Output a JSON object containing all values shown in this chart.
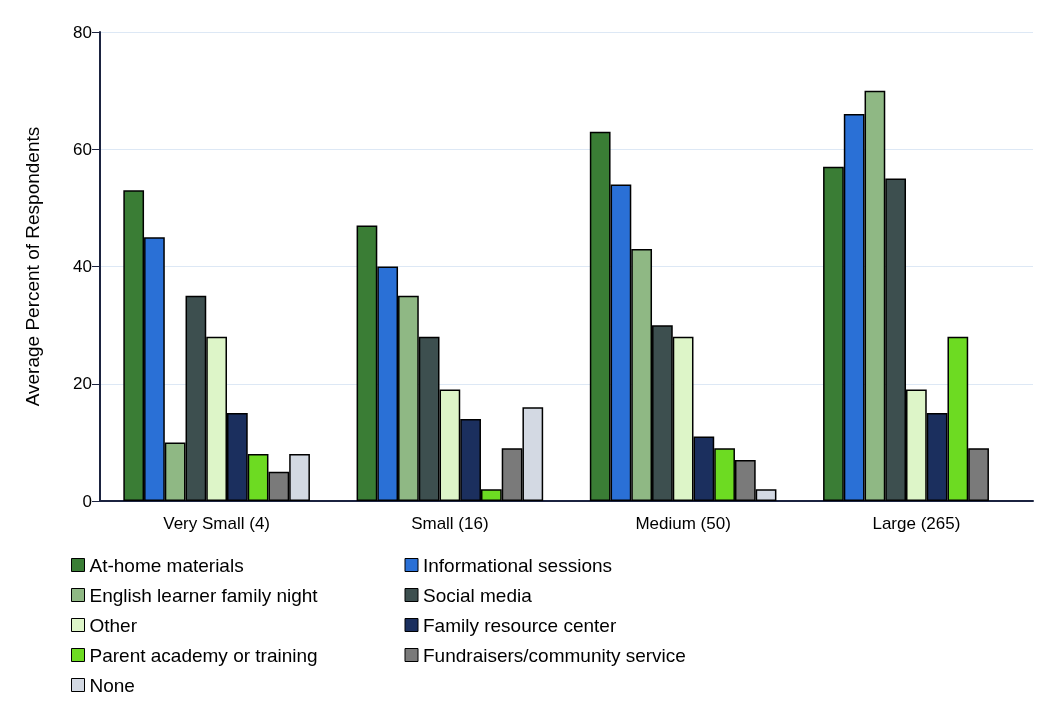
{
  "chart_data": {
    "type": "bar",
    "ylabel": "Average Percent of Respondents",
    "categories": [
      "Very Small (4)",
      "Small (16)",
      "Medium (50)",
      "Large (265)"
    ],
    "series": [
      {
        "name": "At-home materials",
        "color": "#3a7d35",
        "values": [
          53,
          47,
          63,
          57
        ]
      },
      {
        "name": "Informational sessions",
        "color": "#2a70d6",
        "values": [
          45,
          40,
          54,
          66
        ]
      },
      {
        "name": "English learner family night",
        "color": "#8fb884",
        "values": [
          10,
          35,
          43,
          70
        ]
      },
      {
        "name": "Social media",
        "color": "#3d4f4f",
        "values": [
          35,
          28,
          30,
          55
        ]
      },
      {
        "name": "Other",
        "color": "#ddf5c8",
        "values": [
          28,
          19,
          28,
          19
        ]
      },
      {
        "name": "Family resource center",
        "color": "#1b2f5e",
        "values": [
          15,
          14,
          11,
          15
        ]
      },
      {
        "name": "Parent academy or training",
        "color": "#6ddb22",
        "values": [
          8,
          2,
          9,
          28
        ]
      },
      {
        "name": "Fundraisers/community service",
        "color": "#7a7a7a",
        "values": [
          5,
          9,
          7,
          9
        ]
      },
      {
        "name": "None",
        "color": "#d3d9e3",
        "values": [
          8,
          16,
          2,
          null
        ]
      }
    ],
    "ylim": [
      0,
      80
    ],
    "yticks": [
      0,
      20,
      40,
      60,
      80
    ],
    "grid": "y",
    "legend": "bottom"
  }
}
